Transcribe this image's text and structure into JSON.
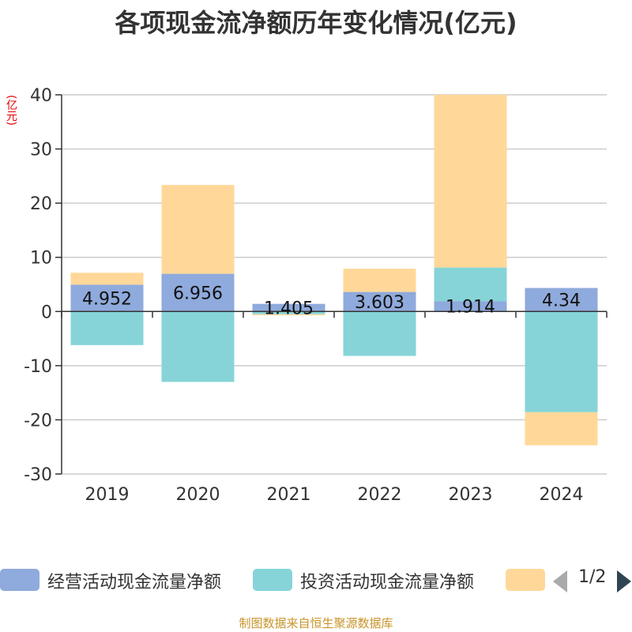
{
  "chart_data": {
    "type": "bar",
    "stacked": true,
    "title": "各项现金流净额历年变化情况(亿元)",
    "ylabel": "(亿元)",
    "xlabel": "",
    "ylim": [
      -30,
      40
    ],
    "yticks": [
      -30,
      -20,
      -10,
      0,
      10,
      20,
      30,
      40
    ],
    "categories": [
      "2019",
      "2020",
      "2021",
      "2022",
      "2023",
      "2024"
    ],
    "grid": true,
    "series": [
      {
        "name": "经营活动现金流量净额",
        "color": "#8faadc",
        "values": [
          4.952,
          6.956,
          1.405,
          3.603,
          1.914,
          4.34
        ],
        "labels": [
          "4.952",
          "6.956",
          "1.405",
          "3.603",
          "1.914",
          "4.34"
        ]
      },
      {
        "name": "投资活动现金流量净额",
        "color": "#86d4d8",
        "values": [
          -6.2,
          -13.0,
          -0.5,
          -8.2,
          6.2,
          -18.6
        ]
      },
      {
        "name": "",
        "color": "#ffd899",
        "values": [
          2.2,
          16.4,
          -0.2,
          4.3,
          31.9,
          -6.1
        ]
      }
    ]
  },
  "legend": {
    "items": [
      {
        "label": "经营活动现金流量净额",
        "color": "#8faadc"
      },
      {
        "label": "投资活动现金流量净额",
        "color": "#86d4d8"
      },
      {
        "label": "",
        "color": "#ffd899"
      }
    ],
    "page_indicator": "1/2"
  },
  "footer": "制图数据来自恒生聚源数据库"
}
